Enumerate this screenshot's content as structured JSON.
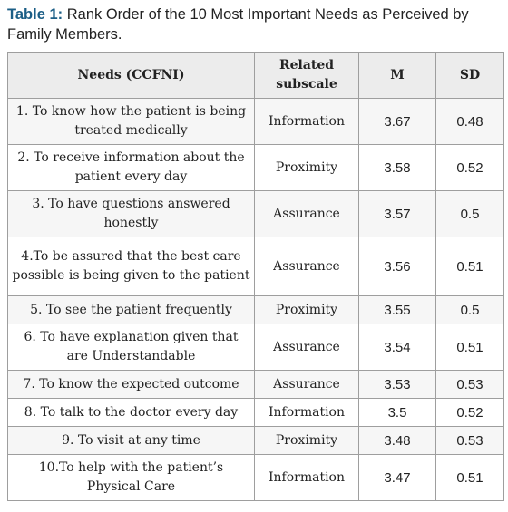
{
  "caption": {
    "label": "Table 1:",
    "text": " Rank Order of the 10 Most Important Needs as Perceived by Family Members."
  },
  "headers": {
    "need": "Needs (CCFNI)",
    "subscale": "Related subscale",
    "mean": "M",
    "sd": "SD"
  },
  "rows": [
    {
      "need": "1. To know how the patient is being treated medically",
      "subscale": "Information",
      "mean": "3.67",
      "sd": "0.48"
    },
    {
      "need": "2. To receive information about the patient every day",
      "subscale": "Proximity",
      "mean": "3.58",
      "sd": "0.52"
    },
    {
      "need": "3. To have questions answered honestly",
      "subscale": "Assurance",
      "mean": "3.57",
      "sd": "0.5"
    },
    {
      "need": "4.To be assured that the best care possible is being given to the patient",
      "subscale": "Assurance",
      "mean": "3.56",
      "sd": "0.51"
    },
    {
      "need": "5. To see the patient frequently",
      "subscale": "Proximity",
      "mean": "3.55",
      "sd": "0.5"
    },
    {
      "need": "6. To have explanation given that are Understandable",
      "subscale": "Assurance",
      "mean": "3.54",
      "sd": "0.51"
    },
    {
      "need": "7. To know the expected outcome",
      "subscale": "Assurance",
      "mean": "3.53",
      "sd": "0.53"
    },
    {
      "need": "8. To talk to the doctor every day",
      "subscale": "Information",
      "mean": "3.5",
      "sd": "0.52"
    },
    {
      "need": "9. To visit at any time",
      "subscale": "Proximity",
      "mean": "3.48",
      "sd": "0.53"
    },
    {
      "need": "10.To help with the patient’s Physical Care",
      "subscale": "Information",
      "mean": "3.47",
      "sd": "0.51"
    }
  ]
}
